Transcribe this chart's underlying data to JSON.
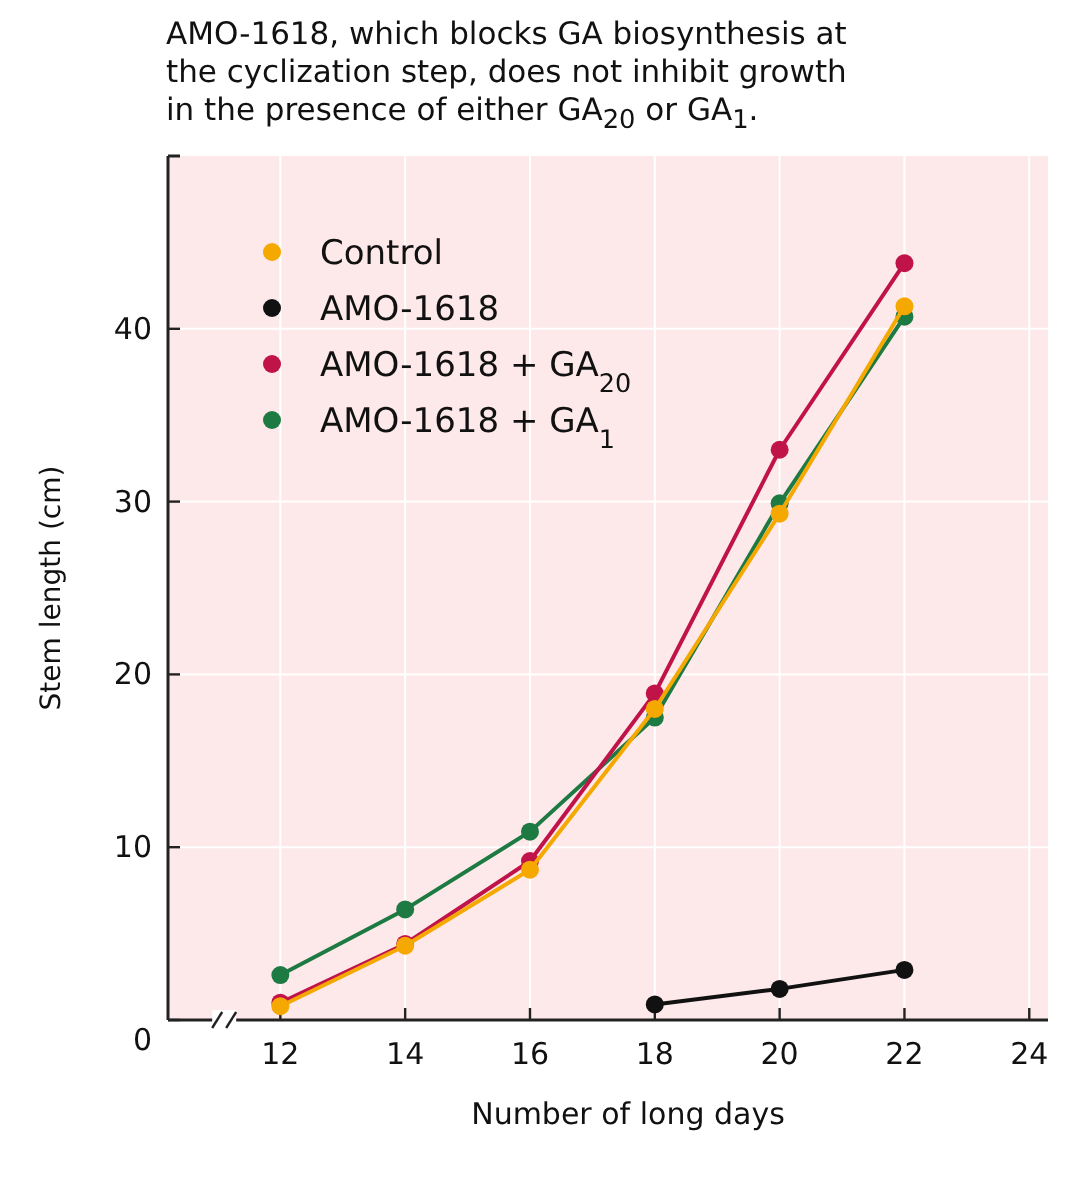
{
  "chart_data": {
    "type": "line",
    "title": "AMO-1618, which blocks GA biosynthesis at the cyclization step, does not inhibit growth in the presence of either GA$_{20}$ or GA$_{1}$.",
    "xlabel": "Number of long days",
    "ylabel": "Stem length (cm)",
    "xlim": [
      10.2,
      24.3
    ],
    "xticks": [
      12,
      14,
      16,
      18,
      20,
      22,
      24
    ],
    "ylim": [
      0,
      50
    ],
    "yticks": [
      0,
      10,
      20,
      30,
      40
    ],
    "grid": true,
    "legend": "top left",
    "marker": "circle",
    "line_style": "solid",
    "series": [
      {
        "name": "Control",
        "color": "#f5a800",
        "x": [
          12,
          14,
          16,
          18,
          20,
          22
        ],
        "values": [
          0.8,
          4.3,
          8.7,
          18,
          29.3,
          41.3
        ]
      },
      {
        "name": "AMO-1618",
        "color": "#111111",
        "x": [
          18,
          20,
          22
        ],
        "values": [
          0.9,
          1.8,
          2.9
        ]
      },
      {
        "name": "AMO-1618 + GA$_{20}$",
        "color": "#c0134a",
        "x": [
          12,
          14,
          16,
          18,
          20,
          22
        ],
        "values": [
          1.0,
          4.4,
          9.2,
          18.9,
          33,
          43.8
        ]
      },
      {
        "name": "AMO-1618 + GA$_{1}$",
        "color": "#1e7a43",
        "x": [
          12,
          14,
          16,
          18,
          20,
          22
        ],
        "values": [
          2.6,
          6.4,
          10.9,
          17.5,
          29.9,
          40.7
        ]
      }
    ]
  }
}
